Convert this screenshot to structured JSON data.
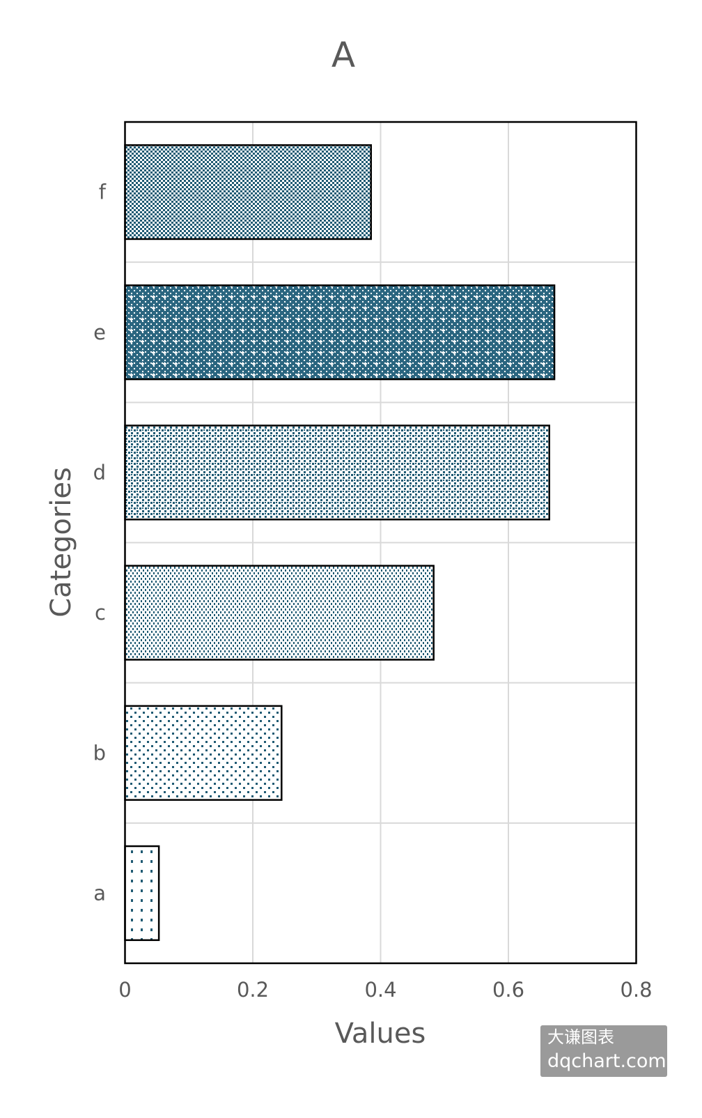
{
  "chart_data": {
    "type": "bar",
    "orientation": "horizontal",
    "title": "A",
    "xlabel": "Values",
    "ylabel": "Categories",
    "categories": [
      "a",
      "b",
      "c",
      "d",
      "e",
      "f"
    ],
    "values": [
      0.053,
      0.245,
      0.483,
      0.664,
      0.672,
      0.385
    ],
    "xlim": [
      0,
      0.8
    ],
    "xticks": [
      "0",
      "0.2",
      "0.4",
      "0.6",
      "0.8"
    ],
    "grid": true,
    "legend": "none",
    "colors": {
      "pattern": "#1f5a73",
      "background": "#ffffff",
      "edge": "#000000",
      "grid": "#d9d9d9",
      "text": "#595959"
    },
    "bar_patterns": [
      "sparse-dots",
      "dots",
      "dense-dots",
      "small-check",
      "check-with-crosses",
      "fine-check"
    ]
  },
  "watermark": {
    "line1": "大谦图表",
    "line2": "dqchart.com"
  }
}
